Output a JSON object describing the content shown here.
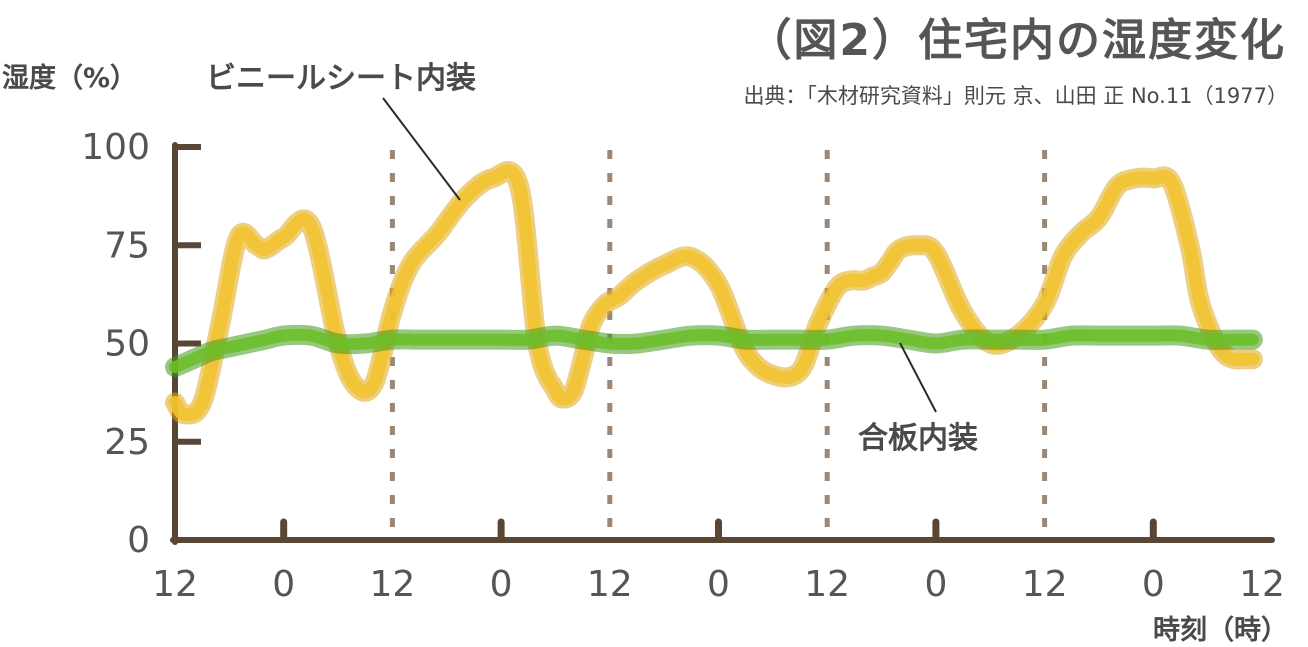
{
  "chart_data": {
    "type": "line",
    "title": "（図2）住宅内の湿度変化",
    "source": "出典：「木材研究資料」則元 京、山田 正 No.11（1977）",
    "ylabel": "湿度（%）",
    "xlabel": "時刻（時）",
    "ylim": [
      0,
      100
    ],
    "y_ticks": [
      "0",
      "25",
      "50",
      "75",
      "100"
    ],
    "y_tick_values": [
      0,
      25,
      50,
      75,
      100
    ],
    "x_tick_labels": [
      "12",
      "0",
      "12",
      "0",
      "12",
      "0",
      "12",
      "0",
      "12",
      "0",
      "12"
    ],
    "xlim": [
      0,
      120
    ],
    "grid": "vertical dashed lines at each 12 (noon)",
    "colors": {
      "vinyl": "#F2C230",
      "plywood": "#6DBE2A",
      "axis": "#5a4634"
    },
    "series": [
      {
        "name": "ビニールシート内装",
        "x": [
          0,
          1,
          3,
          5,
          7,
          9,
          10,
          12,
          15,
          18,
          20,
          22,
          24,
          26,
          29,
          32,
          35,
          38,
          40,
          42,
          43,
          44,
          45,
          46,
          47.5,
          49,
          51,
          54,
          57,
          60,
          63,
          66,
          69,
          71,
          73,
          74.5,
          76,
          77,
          78,
          79,
          80,
          82,
          84,
          87,
          90,
          93,
          96,
          98,
          100,
          102,
          104,
          106,
          108,
          110,
          112,
          113,
          114,
          115,
          116,
          117,
          118,
          119
        ],
        "y": [
          35,
          32,
          35,
          55,
          77,
          75,
          74,
          77,
          80,
          50,
          39,
          40,
          58,
          70,
          78,
          87,
          92,
          90,
          50,
          38,
          36,
          38,
          46,
          55,
          60,
          62,
          66,
          70,
          72,
          65,
          48,
          42,
          43,
          55,
          64,
          66,
          66,
          67,
          68,
          71,
          74,
          75,
          73,
          58,
          50,
          52,
          60,
          72,
          78,
          82,
          90,
          92,
          92,
          91,
          75,
          62,
          55,
          50,
          47,
          46,
          46,
          46
        ]
      },
      {
        "name": "合板内装",
        "x": [
          0,
          2,
          4,
          6,
          8,
          10,
          12,
          15,
          18,
          21,
          24,
          27,
          30,
          33,
          36,
          39,
          42,
          45,
          48,
          51,
          54,
          57,
          60,
          63,
          66,
          69,
          72,
          75,
          78,
          81,
          84,
          87,
          90,
          93,
          96,
          99,
          102,
          105,
          108,
          111,
          114,
          117,
          119
        ],
        "y": [
          44,
          46,
          48,
          49,
          50,
          51,
          52,
          52,
          50,
          50,
          51,
          51,
          51,
          51,
          51,
          51,
          52,
          51,
          50,
          50,
          51,
          52,
          52,
          51,
          51,
          51,
          51,
          52,
          52,
          51,
          50,
          51,
          51,
          51,
          51,
          52,
          52,
          52,
          52,
          52,
          51,
          51,
          51
        ]
      }
    ],
    "annotations": [
      {
        "text": "ビニールシート内装",
        "series": "ビニールシート内装"
      },
      {
        "text": "合板内装",
        "series": "合板内装"
      }
    ]
  }
}
